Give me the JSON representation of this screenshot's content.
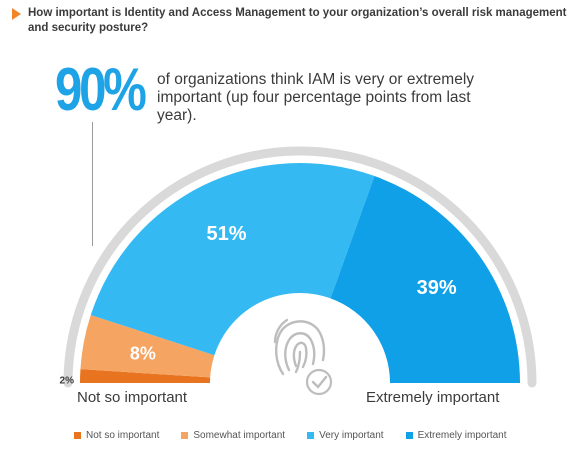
{
  "question": "How important is Identity and Access Management to your organization’s overall risk management and security posture?",
  "headline": {
    "value": "90%",
    "text": "of organizations think IAM is very or extremely important (up four percentage points from last year)."
  },
  "colors": {
    "accent": "#f0852a",
    "track": "#d9d9d9",
    "center_icon": "#bdbdbd"
  },
  "center_icon": "fingerprint-check-icon",
  "chart_data": {
    "type": "pie",
    "variant": "semicircle",
    "title": "",
    "categories": [
      "Not so important",
      "Somewhat important",
      "Very important",
      "Extremely important"
    ],
    "values": [
      2,
      8,
      51,
      39
    ],
    "value_labels": [
      "2%",
      "8%",
      "51%",
      "39%"
    ],
    "colors": [
      "#e8741f",
      "#f5a462",
      "#35b9f2",
      "#0fa0e8"
    ],
    "end_labels": {
      "left": "Not so important",
      "right": "Extremely important"
    },
    "legend": {
      "placement": "bottom",
      "entries": [
        "Not so important",
        "Somewhat important",
        "Very important",
        "Extremely important"
      ]
    }
  }
}
